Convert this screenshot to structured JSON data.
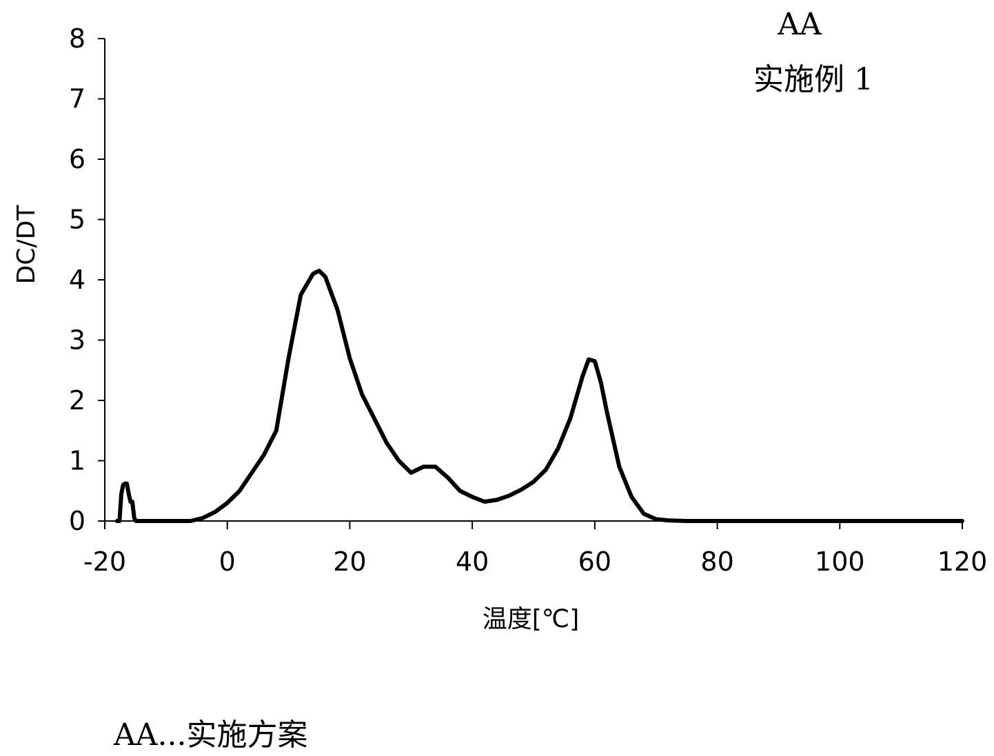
{
  "chart_data": {
    "type": "line",
    "xlabel": "温度[℃]",
    "ylabel": "DC/DT",
    "annotation_lines": [
      "AA",
      "实施例 1"
    ],
    "xlim": [
      -20,
      120
    ],
    "ylim": [
      0,
      8
    ],
    "x_ticks": [
      "-20",
      "0",
      "20",
      "40",
      "60",
      "80",
      "100",
      "120"
    ],
    "y_ticks": [
      "0",
      "1",
      "2",
      "3",
      "4",
      "5",
      "6",
      "7",
      "8"
    ],
    "grid": false,
    "series": [
      {
        "color": "#000000",
        "x": [
          -18,
          -17.6,
          -17.3,
          -17,
          -16.7,
          -16.4,
          -16.1,
          -15.8,
          -15.5,
          -15.2,
          -14.9,
          -14.6,
          -14,
          -10,
          -6,
          -4,
          -2,
          0,
          2,
          4,
          6,
          8,
          10,
          12,
          14,
          15,
          16,
          18,
          20,
          22,
          24,
          26,
          28,
          30,
          32,
          34,
          36,
          38,
          40,
          42,
          44,
          46,
          48,
          50,
          52,
          54,
          56,
          58,
          59,
          60,
          61,
          62,
          64,
          66,
          68,
          70,
          72,
          75,
          80,
          100,
          120
        ],
        "y": [
          0,
          0,
          0.45,
          0.6,
          0.62,
          0.62,
          0.45,
          0.32,
          0.32,
          0.05,
          0,
          0,
          0,
          0,
          0,
          0.05,
          0.15,
          0.3,
          0.5,
          0.8,
          1.1,
          1.5,
          2.7,
          3.75,
          4.1,
          4.15,
          4.05,
          3.5,
          2.7,
          2.1,
          1.7,
          1.3,
          1.0,
          0.8,
          0.9,
          0.9,
          0.72,
          0.5,
          0.4,
          0.32,
          0.35,
          0.42,
          0.52,
          0.65,
          0.85,
          1.2,
          1.7,
          2.4,
          2.68,
          2.65,
          2.3,
          1.8,
          0.9,
          0.4,
          0.12,
          0.03,
          0.01,
          0,
          0,
          0,
          0
        ]
      }
    ]
  },
  "footnote": "AA...实施方案"
}
